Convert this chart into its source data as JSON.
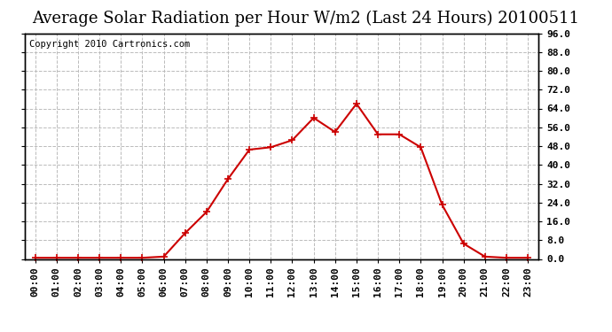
{
  "title": "Average Solar Radiation per Hour W/m2 (Last 24 Hours) 20100511",
  "copyright_text": "Copyright 2010 Cartronics.com",
  "hours": [
    "00:00",
    "01:00",
    "02:00",
    "03:00",
    "04:00",
    "05:00",
    "06:00",
    "07:00",
    "08:00",
    "09:00",
    "10:00",
    "11:00",
    "12:00",
    "13:00",
    "14:00",
    "15:00",
    "16:00",
    "17:00",
    "18:00",
    "19:00",
    "20:00",
    "21:00",
    "22:00",
    "23:00"
  ],
  "values": [
    0.5,
    0.5,
    0.5,
    0.5,
    0.5,
    0.5,
    1.0,
    11.0,
    20.0,
    34.0,
    46.5,
    47.5,
    50.5,
    60.0,
    54.0,
    66.0,
    53.0,
    53.0,
    47.5,
    23.0,
    6.5,
    1.0,
    0.5,
    0.5
  ],
  "line_color": "#cc0000",
  "marker": "+",
  "marker_size": 6,
  "line_width": 1.5,
  "bg_color": "#ffffff",
  "plot_bg_color": "#ffffff",
  "grid_color": "#bbbbbb",
  "grid_style": "--",
  "ylim": [
    0.0,
    96.0
  ],
  "yticks": [
    0.0,
    8.0,
    16.0,
    24.0,
    32.0,
    40.0,
    48.0,
    56.0,
    64.0,
    72.0,
    80.0,
    88.0,
    96.0
  ],
  "title_fontsize": 13,
  "copyright_fontsize": 7.5,
  "tick_fontsize": 8,
  "border_color": "#000000"
}
